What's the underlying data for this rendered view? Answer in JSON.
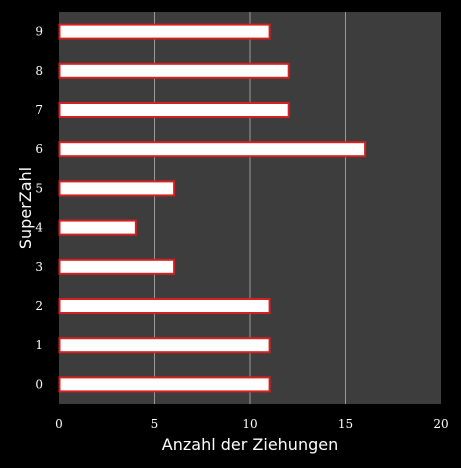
{
  "chart_data": {
    "type": "bar",
    "orientation": "horizontal",
    "categories": [
      "0",
      "1",
      "2",
      "3",
      "4",
      "5",
      "6",
      "7",
      "8",
      "9"
    ],
    "values": [
      11,
      11,
      11,
      6,
      4,
      6,
      16,
      12,
      12,
      11
    ],
    "title": "",
    "xlabel": "Anzahl der Ziehungen",
    "ylabel": "SuperZahl",
    "xlim": [
      0,
      20
    ],
    "xticks": [
      0,
      5,
      10,
      15,
      20
    ],
    "grid": "vertical",
    "legend": "none",
    "colors": {
      "background": "#000000",
      "plot_area": "#3d3d3d",
      "gridline": "#9a9a9a",
      "bar_fill": "#ffffff",
      "bar_edge": "#d42020",
      "text": "#ffffff"
    }
  }
}
